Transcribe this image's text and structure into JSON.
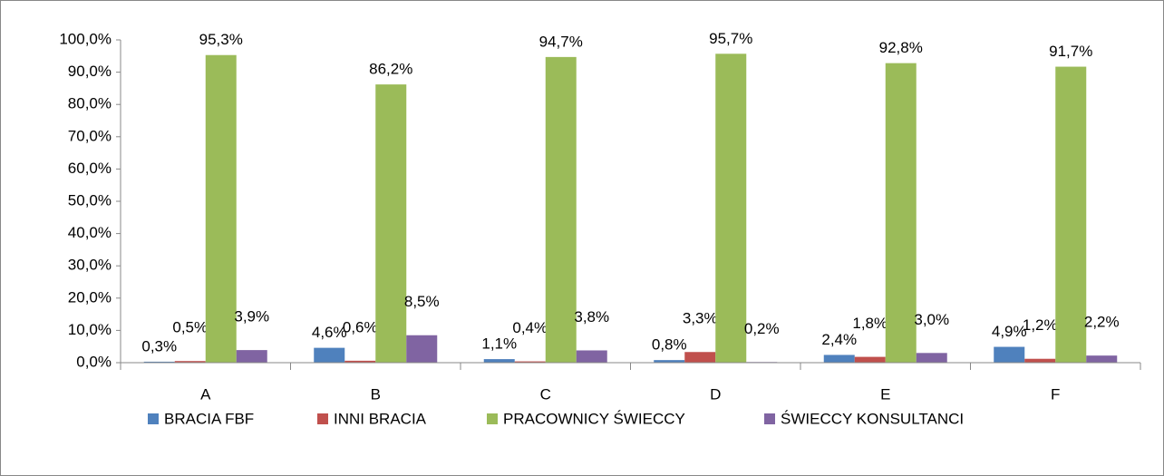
{
  "chart_data": {
    "type": "bar",
    "categories": [
      "A",
      "B",
      "C",
      "D",
      "E",
      "F"
    ],
    "series": [
      {
        "name": "BRACIA FBF",
        "color": "#4f81bd",
        "values": [
          0.3,
          4.6,
          1.1,
          0.8,
          2.4,
          4.9
        ],
        "value_labels": [
          "0,3%",
          "4,6%",
          "1,1%",
          "0,8%",
          "2,4%",
          "4,9%"
        ]
      },
      {
        "name": "INNI BRACIA",
        "color": "#c0504d",
        "values": [
          0.5,
          0.6,
          0.4,
          3.3,
          1.8,
          1.2
        ],
        "value_labels": [
          "0,5%",
          "0,6%",
          "0,4%",
          "3,3%",
          "1,8%",
          "1,2%"
        ]
      },
      {
        "name": "PRACOWNICY ŚWIECCY",
        "color": "#9bbb59",
        "values": [
          95.3,
          86.2,
          94.7,
          95.7,
          92.8,
          91.7
        ],
        "value_labels": [
          "95,3%",
          "86,2%",
          "94,7%",
          "95,7%",
          "92,8%",
          "91,7%"
        ]
      },
      {
        "name": "ŚWIECCY KONSULTANCI",
        "color": "#8064a2",
        "values": [
          3.9,
          8.5,
          3.8,
          0.2,
          3.0,
          2.2
        ],
        "value_labels": [
          "3,9%",
          "8,5%",
          "3,8%",
          "0,2%",
          "3,0%",
          "2,2%"
        ]
      }
    ],
    "ylim": [
      0,
      100
    ],
    "yticks": [
      {
        "value": 0,
        "label": "0,0%"
      },
      {
        "value": 10,
        "label": "10,0%"
      },
      {
        "value": 20,
        "label": "20,0%"
      },
      {
        "value": 30,
        "label": "30,0%"
      },
      {
        "value": 40,
        "label": "40,0%"
      },
      {
        "value": 50,
        "label": "50,0%"
      },
      {
        "value": 60,
        "label": "60,0%"
      },
      {
        "value": 70,
        "label": "70,0%"
      },
      {
        "value": 80,
        "label": "80,0%"
      },
      {
        "value": 90,
        "label": "90,0%"
      },
      {
        "value": 100,
        "label": "100,0%"
      }
    ],
    "legend": "bottom"
  }
}
